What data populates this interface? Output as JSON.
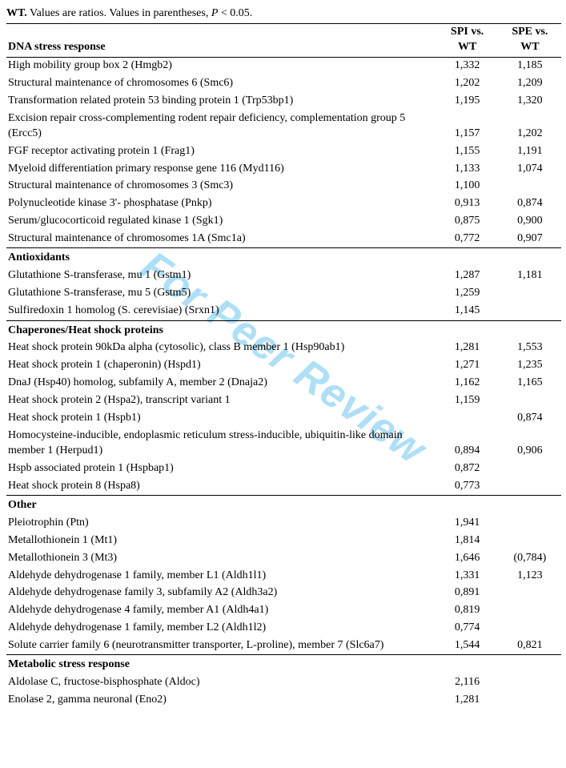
{
  "caption": {
    "prefix": "WT.",
    "text": " Values are ratios. Values in parentheses, ",
    "italic": "P",
    "suffix": " < 0.05."
  },
  "header": {
    "col1": "DNA stress response",
    "col2_line1": "SPI vs.",
    "col2_line2": "WT",
    "col3_line1": "SPE vs.",
    "col3_line2": "WT"
  },
  "sections": [
    {
      "title": null,
      "rows": [
        {
          "name": "High mobility group box 2 (Hmgb2)",
          "spi": "1,332",
          "spe": "1,185"
        },
        {
          "name": "Structural maintenance of chromosomes 6 (Smc6)",
          "spi": "1,202",
          "spe": "1,209"
        },
        {
          "name": "Transformation related protein 53 binding protein 1 (Trp53bp1)",
          "spi": "1,195",
          "spe": "1,320"
        },
        {
          "name": "Excision repair cross-complementing rodent repair deficiency, complementation group 5 (Ercc5)",
          "spi": "1,157",
          "spe": "1,202"
        },
        {
          "name": "FGF receptor activating protein 1 (Frag1)",
          "spi": "1,155",
          "spe": "1,191"
        },
        {
          "name": "Myeloid differentiation primary response gene 116 (Myd116)",
          "spi": "1,133",
          "spe": "1,074"
        },
        {
          "name": "Structural maintenance of chromosomes 3 (Smc3)",
          "spi": "1,100",
          "spe": ""
        },
        {
          "name": "Polynucleotide kinase 3'- phosphatase (Pnkp)",
          "spi": "0,913",
          "spe": "0,874"
        },
        {
          "name": "Serum/glucocorticoid regulated kinase 1 (Sgk1)",
          "spi": "0,875",
          "spe": "0,900"
        },
        {
          "name": "Structural maintenance of chromosomes 1A (Smc1a)",
          "spi": "0,772",
          "spe": "0,907"
        }
      ]
    },
    {
      "title": "Antioxidants",
      "rows": [
        {
          "name": "Glutathione S-transferase, mu 1 (Gstm1)",
          "spi": "1,287",
          "spe": "1,181"
        },
        {
          "name": "Glutathione S-transferase, mu 5 (Gstm5)",
          "spi": "1,259",
          "spe": ""
        },
        {
          "name": "Sulfiredoxin 1 homolog (S. cerevisiae) (Srxn1)",
          "spi": "1,145",
          "spe": ""
        }
      ]
    },
    {
      "title": "Chaperones/Heat shock proteins",
      "rows": [
        {
          "name": "Heat shock protein 90kDa alpha (cytosolic), class B member 1 (Hsp90ab1)",
          "spi": "1,281",
          "spe": "1,553"
        },
        {
          "name": "Heat shock protein 1 (chaperonin) (Hspd1)",
          "spi": "1,271",
          "spe": "1,235"
        },
        {
          "name": "DnaJ (Hsp40) homolog, subfamily A, member 2 (Dnaja2)",
          "spi": "1,162",
          "spe": "1,165"
        },
        {
          "name": "Heat shock protein 2 (Hspa2), transcript variant 1",
          "spi": "1,159",
          "spe": ""
        },
        {
          "name": "Heat shock protein 1 (Hspb1)",
          "spi": "",
          "spe": "0,874"
        },
        {
          "name": "Homocysteine-inducible, endoplasmic reticulum stress-inducible, ubiquitin-like domain member 1 (Herpud1)",
          "spi": "0,894",
          "spe": "0,906"
        },
        {
          "name": "Hspb associated protein 1 (Hspbap1)",
          "spi": "0,872",
          "spe": ""
        },
        {
          "name": "Heat shock protein 8 (Hspa8)",
          "spi": "0,773",
          "spe": ""
        }
      ]
    },
    {
      "title": "Other",
      "rows": [
        {
          "name": "Pleiotrophin (Ptn)",
          "spi": "1,941",
          "spe": ""
        },
        {
          "name": "Metallothionein 1 (Mt1)",
          "spi": "1,814",
          "spe": ""
        },
        {
          "name": "Metallothionein 3 (Mt3)",
          "spi": "1,646",
          "spe": "(0,784)"
        },
        {
          "name": "Aldehyde dehydrogenase 1 family, member L1 (Aldh1l1)",
          "spi": "1,331",
          "spe": "1,123"
        },
        {
          "name": "Aldehyde dehydrogenase family 3, subfamily A2 (Aldh3a2)",
          "spi": "0,891",
          "spe": ""
        },
        {
          "name": "Aldehyde dehydrogenase 4 family, member A1 (Aldh4a1)",
          "spi": "0,819",
          "spe": ""
        },
        {
          "name": "Aldehyde dehydrogenase 1 family, member L2 (Aldh1l2)",
          "spi": "0,774",
          "spe": ""
        },
        {
          "name": "Solute carrier family 6 (neurotransmitter transporter, L-proline), member 7 (Slc6a7)",
          "spi": "1,544",
          "spe": "0,821"
        }
      ]
    },
    {
      "title": "Metabolic stress response",
      "rows": [
        {
          "name": "Aldolase C, fructose-bisphosphate (Aldoc)",
          "spi": "2,116",
          "spe": ""
        },
        {
          "name": "Enolase 2, gamma neuronal (Eno2)",
          "spi": "1,281",
          "spe": ""
        }
      ]
    }
  ],
  "watermark": "For Peer Review"
}
